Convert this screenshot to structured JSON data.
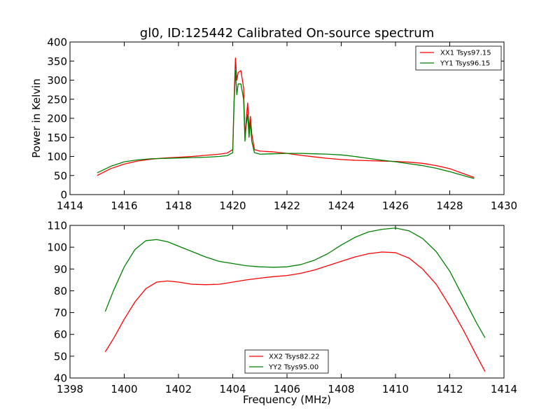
{
  "chart_data": [
    {
      "type": "line",
      "title": "gl0, ID:125442 Calibrated On-source spectrum",
      "xlabel": "",
      "ylabel": "Power in Kelvin",
      "xlim": [
        1414,
        1430
      ],
      "ylim": [
        0,
        400
      ],
      "xticks": [
        "1414",
        "1416",
        "1418",
        "1420",
        "1422",
        "1424",
        "1426",
        "1428",
        "1430"
      ],
      "yticks": [
        "0",
        "50",
        "100",
        "150",
        "200",
        "250",
        "300",
        "350",
        "400"
      ],
      "legend_position": "top-right",
      "grid": false,
      "series": [
        {
          "name": "XX1 Tsys97.15",
          "color": "#ff0000",
          "x": [
            1415,
            1415.5,
            1416,
            1416.5,
            1417,
            1417.5,
            1418,
            1418.5,
            1419,
            1419.5,
            1419.8,
            1420,
            1420.05,
            1420.1,
            1420.15,
            1420.2,
            1420.3,
            1420.4,
            1420.45,
            1420.5,
            1420.55,
            1420.6,
            1420.65,
            1420.7,
            1420.8,
            1421,
            1421.5,
            1422,
            1422.5,
            1423,
            1423.5,
            1424,
            1424.5,
            1425,
            1425.5,
            1426,
            1426.5,
            1427,
            1427.5,
            1428,
            1428.5,
            1428.9
          ],
          "y": [
            50,
            68,
            80,
            88,
            93,
            96,
            98,
            100,
            103,
            106,
            109,
            118,
            250,
            358,
            300,
            320,
            325,
            280,
            150,
            200,
            240,
            170,
            205,
            160,
            118,
            114,
            112,
            108,
            103,
            99,
            95,
            92,
            90,
            89,
            88,
            87,
            85,
            82,
            76,
            68,
            55,
            45
          ]
        },
        {
          "name": "YY1 Tsys96.15",
          "color": "#008000",
          "x": [
            1415,
            1415.5,
            1416,
            1416.5,
            1417,
            1417.5,
            1418,
            1418.5,
            1419,
            1419.5,
            1419.8,
            1420,
            1420.05,
            1420.1,
            1420.15,
            1420.2,
            1420.3,
            1420.4,
            1420.45,
            1420.5,
            1420.55,
            1420.6,
            1420.65,
            1420.7,
            1420.8,
            1421,
            1421.5,
            1422,
            1422.5,
            1423,
            1423.5,
            1424,
            1424.5,
            1425,
            1425.5,
            1426,
            1426.5,
            1427,
            1427.5,
            1428,
            1428.5,
            1428.9
          ],
          "y": [
            57,
            74,
            86,
            91,
            94,
            95,
            96,
            97,
            98,
            100,
            102,
            110,
            240,
            325,
            262,
            290,
            290,
            250,
            140,
            185,
            210,
            150,
            190,
            140,
            110,
            106,
            107,
            108,
            108,
            107,
            106,
            104,
            100,
            95,
            90,
            86,
            81,
            76,
            69,
            60,
            50,
            42
          ]
        }
      ]
    },
    {
      "type": "line",
      "title": "",
      "xlabel": "Frequency (MHz)",
      "ylabel": "",
      "xlim": [
        1398,
        1414
      ],
      "ylim": [
        40,
        110
      ],
      "xticks": [
        "1398",
        "1400",
        "1402",
        "1404",
        "1406",
        "1408",
        "1410",
        "1412",
        "1414"
      ],
      "yticks": [
        "40",
        "50",
        "60",
        "70",
        "80",
        "90",
        "100",
        "110"
      ],
      "legend_position": "bottom-center",
      "grid": false,
      "series": [
        {
          "name": "XX2 Tsys82.22",
          "color": "#ff0000",
          "x": [
            1399.3,
            1399.6,
            1400,
            1400.4,
            1400.8,
            1401.2,
            1401.6,
            1402,
            1402.5,
            1403,
            1403.5,
            1404,
            1404.5,
            1405,
            1405.5,
            1406,
            1406.5,
            1407,
            1407.5,
            1408,
            1408.5,
            1409,
            1409.5,
            1410,
            1410.5,
            1411,
            1411.5,
            1412,
            1412.5,
            1413,
            1413.3
          ],
          "y": [
            52,
            58,
            67,
            75,
            81,
            84,
            84.5,
            84,
            83,
            82.8,
            83,
            84,
            85,
            85.8,
            86.5,
            87,
            88,
            89.5,
            91.5,
            93.5,
            95.5,
            97,
            97.8,
            97.5,
            95,
            90,
            83,
            73,
            62,
            50,
            43
          ]
        },
        {
          "name": "YY2 Tsys95.00",
          "color": "#008000",
          "x": [
            1399.3,
            1399.6,
            1400,
            1400.4,
            1400.8,
            1401.2,
            1401.6,
            1402,
            1402.5,
            1403,
            1403.5,
            1404,
            1404.5,
            1405,
            1405.5,
            1406,
            1406.5,
            1407,
            1407.5,
            1408,
            1408.5,
            1409,
            1409.5,
            1410,
            1410.5,
            1411,
            1411.5,
            1412,
            1412.5,
            1413,
            1413.3
          ],
          "y": [
            70.5,
            80,
            91,
            99,
            103,
            103.5,
            102.5,
            100.5,
            98,
            95.5,
            93.5,
            92.5,
            91.5,
            91,
            90.8,
            91,
            92,
            94,
            97,
            101,
            104.5,
            107,
            108.2,
            108.8,
            107.5,
            104,
            98,
            89,
            77,
            65,
            58.5
          ]
        }
      ]
    }
  ]
}
